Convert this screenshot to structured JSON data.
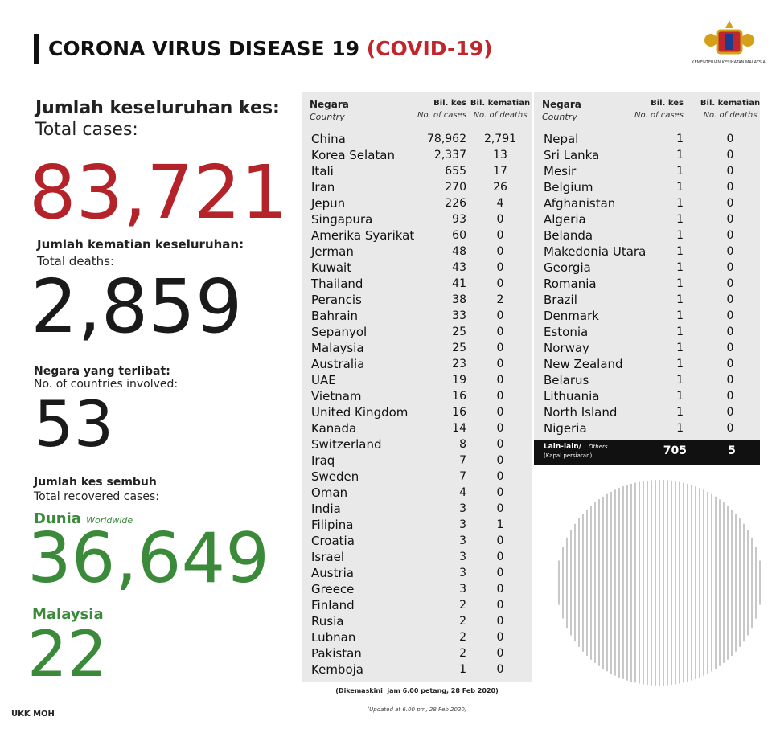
{
  "header": {
    "title": "CORONA VIRUS DISEASE 19",
    "title_highlight": "(COVID-19)",
    "logo_text": "KEMENTERIAN KESIHATAN MALAYSIA"
  },
  "stats": {
    "total_cases": {
      "label_ms": "Jumlah keseluruhan kes:",
      "label_en": "Total cases:",
      "value": "83,721"
    },
    "total_deaths": {
      "label_ms": "Jumlah kematian keseluruhan:",
      "label_en": "Total deaths:",
      "value": "2,859"
    },
    "countries": {
      "label_ms": "Negara yang terlibat:",
      "label_en": "No. of countries involved:",
      "value": "53"
    },
    "recovered": {
      "label_ms": "Jumlah kes sembuh",
      "label_en": "Total recovered cases:",
      "world_label_ms": "Dunia",
      "world_label_en": "Worldwide",
      "world_value": "36,649",
      "malaysia_label": "Malaysia",
      "malaysia_value": "22"
    }
  },
  "table_header": {
    "country_ms": "Negara",
    "country_en": "Country",
    "cases_ms": "Bil. kes",
    "cases_en": "No. of cases",
    "deaths_ms": "Bil. kematian",
    "deaths_en": "No. of deaths"
  },
  "table_left": {
    "rows": [
      [
        "China",
        "78,962",
        "2,791"
      ],
      [
        "Korea Selatan",
        "2,337",
        "13"
      ],
      [
        "Itali",
        "655",
        "17"
      ],
      [
        "Iran",
        "270",
        "26"
      ],
      [
        "Jepun",
        "226",
        "4"
      ],
      [
        "Singapura",
        "93",
        "0"
      ],
      [
        "Amerika Syarikat",
        "60",
        "0"
      ],
      [
        "Jerman",
        "48",
        "0"
      ],
      [
        "Kuwait",
        "43",
        "0"
      ],
      [
        "Thailand",
        "41",
        "0"
      ],
      [
        "Perancis",
        "38",
        "2"
      ],
      [
        "Bahrain",
        "33",
        "0"
      ],
      [
        "Sepanyol",
        "25",
        "0"
      ],
      [
        "Malaysia",
        "25",
        "0"
      ],
      [
        "Australia",
        "23",
        "0"
      ],
      [
        "UAE",
        "19",
        "0"
      ],
      [
        "Vietnam",
        "16",
        "0"
      ],
      [
        "United Kingdom",
        "16",
        "0"
      ],
      [
        "Kanada",
        "14",
        "0"
      ],
      [
        "Switzerland",
        "8",
        "0"
      ],
      [
        "Iraq",
        "7",
        "0"
      ],
      [
        "Sweden",
        "7",
        "0"
      ],
      [
        "Oman",
        "4",
        "0"
      ],
      [
        "India",
        "3",
        "0"
      ],
      [
        "Filipina",
        "3",
        "1"
      ],
      [
        "Croatia",
        "3",
        "0"
      ],
      [
        "Israel",
        "3",
        "0"
      ],
      [
        "Austria",
        "3",
        "0"
      ],
      [
        "Greece",
        "3",
        "0"
      ],
      [
        "Finland",
        "2",
        "0"
      ],
      [
        "Rusia",
        "2",
        "0"
      ],
      [
        "Lubnan",
        "2",
        "0"
      ],
      [
        "Pakistan",
        "2",
        "0"
      ],
      [
        "Kemboja",
        "1",
        "0"
      ]
    ]
  },
  "table_right": {
    "rows": [
      [
        "Nepal",
        "1",
        "0"
      ],
      [
        "Sri Lanka",
        "1",
        "0"
      ],
      [
        "Mesir",
        "1",
        "0"
      ],
      [
        "Belgium",
        "1",
        "0"
      ],
      [
        "Afghanistan",
        "1",
        "0"
      ],
      [
        "Algeria",
        "1",
        "0"
      ],
      [
        "Belanda",
        "1",
        "0"
      ],
      [
        "Makedonia Utara",
        "1",
        "0"
      ],
      [
        "Georgia",
        "1",
        "0"
      ],
      [
        "Romania",
        "1",
        "0"
      ],
      [
        "Brazil",
        "1",
        "0"
      ],
      [
        "Denmark",
        "1",
        "0"
      ],
      [
        "Estonia",
        "1",
        "0"
      ],
      [
        "Norway",
        "1",
        "0"
      ],
      [
        "New Zealand",
        "1",
        "0"
      ],
      [
        "Belarus",
        "1",
        "0"
      ],
      [
        "Lithuania",
        "1",
        "0"
      ],
      [
        "North Island",
        "1",
        "0"
      ],
      [
        "Nigeria",
        "1",
        "0"
      ]
    ],
    "others": {
      "label_ms": "Lain-lain/",
      "label_en": "Others",
      "note": "(Kapal persiaran)",
      "cases": "705",
      "deaths": "5"
    }
  },
  "footnote": {
    "ms": "(Dikemaskini  jam 6.00 petang, 28 Feb 2020)",
    "en": "(Updated at 6.00 pm, 28 Feb 2020)"
  },
  "source": "UKK MOH"
}
